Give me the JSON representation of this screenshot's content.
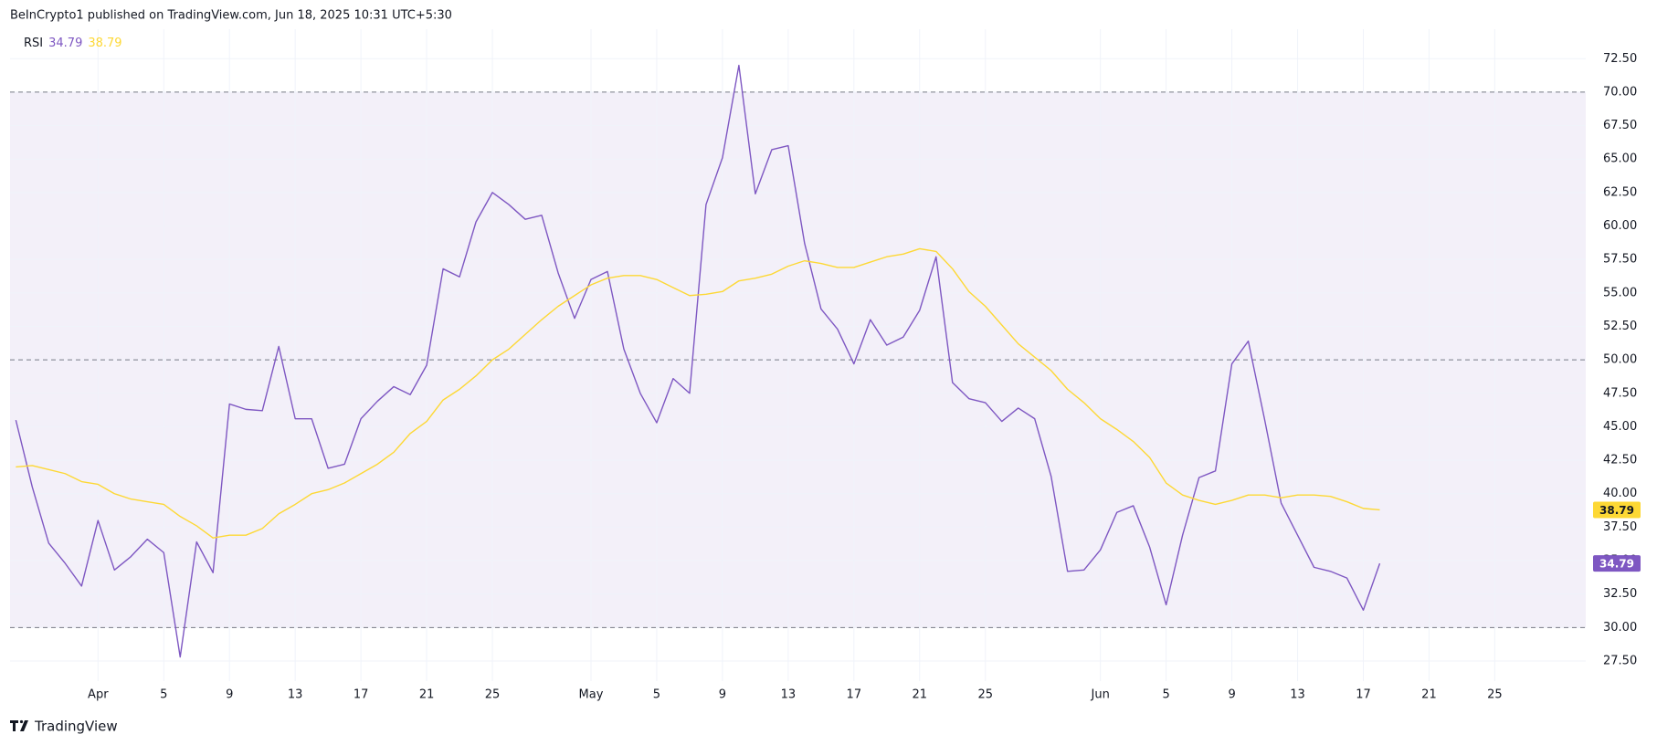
{
  "header": "BeInCrypto1 published on TradingView.com, Jun 18, 2025 10:31 UTC+5:30",
  "footer": "TradingView",
  "chart_data": {
    "type": "line",
    "categories": [
      null,
      null,
      null,
      null,
      null,
      "Apr",
      null,
      null,
      null,
      "5",
      null,
      null,
      null,
      "9",
      null,
      null,
      null,
      "13",
      null,
      null,
      null,
      "17",
      null,
      null,
      null,
      "21",
      null,
      null,
      null,
      "25",
      null,
      null,
      null,
      null,
      null,
      "May",
      null,
      null,
      null,
      "5",
      null,
      null,
      null,
      "9",
      null,
      null,
      null,
      "13",
      null,
      null,
      null,
      "17",
      null,
      null,
      null,
      "21",
      null,
      null,
      null,
      "25",
      null,
      null,
      null,
      null,
      null,
      null,
      "Jun",
      null,
      null,
      null,
      "5",
      null,
      null,
      null,
      "9",
      null,
      null,
      null,
      "13",
      null,
      null,
      null,
      "17",
      null,
      null,
      null,
      "21",
      null,
      null,
      null,
      "25",
      null,
      null,
      null,
      null,
      null
    ],
    "series": [
      {
        "name": "RSI",
        "color": "#7e57c2",
        "values": [
          45.5,
          40.5,
          36.3,
          34.8,
          33.1,
          38.0,
          34.3,
          35.3,
          36.6,
          35.6,
          27.8,
          36.4,
          34.1,
          46.7,
          46.3,
          46.2,
          51.0,
          45.6,
          45.6,
          41.9,
          42.2,
          45.6,
          46.9,
          48.0,
          47.4,
          49.6,
          56.8,
          56.2,
          60.3,
          62.5,
          61.6,
          60.5,
          60.8,
          56.5,
          53.1,
          56.0,
          56.6,
          50.8,
          47.5,
          45.3,
          48.6,
          47.5,
          61.6,
          65.1,
          72.0,
          62.4,
          65.7,
          66.0,
          58.7,
          53.8,
          52.3,
          49.7,
          53.0,
          51.1,
          51.7,
          53.7,
          57.7,
          48.3,
          47.1,
          46.8,
          45.4,
          46.4,
          45.6,
          41.3,
          34.2,
          34.3,
          35.8,
          38.6,
          39.1,
          36.0,
          31.7,
          36.9,
          41.2,
          41.7,
          49.7,
          51.4,
          45.5,
          39.3,
          36.9,
          34.5,
          34.2,
          33.7,
          31.3,
          34.79,
          null,
          null,
          null,
          null,
          null,
          null,
          null,
          null,
          null,
          null,
          null,
          null
        ]
      },
      {
        "color": "#fdd835",
        "values": [
          42.0,
          42.1,
          41.8,
          41.5,
          40.9,
          40.7,
          40.0,
          39.6,
          39.4,
          39.2,
          38.3,
          37.6,
          36.7,
          36.9,
          36.9,
          37.4,
          38.5,
          39.2,
          40.0,
          40.3,
          40.8,
          41.5,
          42.2,
          43.1,
          44.5,
          45.4,
          47.0,
          47.8,
          48.8,
          50.0,
          50.8,
          51.9,
          53.0,
          54.0,
          54.8,
          55.6,
          56.1,
          56.3,
          56.3,
          56.0,
          55.4,
          54.8,
          54.9,
          55.1,
          55.9,
          56.1,
          56.4,
          57.0,
          57.4,
          57.2,
          56.9,
          56.9,
          57.3,
          57.7,
          57.9,
          58.3,
          58.1,
          56.8,
          55.1,
          54.0,
          52.6,
          51.2,
          50.2,
          49.2,
          47.8,
          46.8,
          45.6,
          44.8,
          43.9,
          42.7,
          40.8,
          39.9,
          39.5,
          39.2,
          39.5,
          39.9,
          39.9,
          39.7,
          39.9,
          39.9,
          39.8,
          39.4,
          38.9,
          38.79,
          null,
          null,
          null,
          null,
          null,
          null,
          null,
          null,
          null,
          null,
          null,
          null
        ]
      }
    ],
    "ylim": [
      26,
      74.7
    ],
    "yticks": [
      {
        "value": 27.5,
        "label": "27.50"
      },
      {
        "value": 30,
        "label": "30.00"
      },
      {
        "value": 32.5,
        "label": "32.50"
      },
      {
        "value": 35,
        "label": "35.00"
      },
      {
        "value": 37.5,
        "label": "37.50"
      },
      {
        "value": 40,
        "label": "40.00"
      },
      {
        "value": 42.5,
        "label": "42.50"
      },
      {
        "value": 45,
        "label": "45.00"
      },
      {
        "value": 47.5,
        "label": "47.50"
      },
      {
        "value": 50,
        "label": "50.00"
      },
      {
        "value": 52.5,
        "label": "52.50"
      },
      {
        "value": 55,
        "label": "55.00"
      },
      {
        "value": 57.5,
        "label": "57.50"
      },
      {
        "value": 60,
        "label": "60.00"
      },
      {
        "value": 62.5,
        "label": "62.50"
      },
      {
        "value": 65,
        "label": "65.00"
      },
      {
        "value": 67.5,
        "label": "67.50"
      },
      {
        "value": 70,
        "label": "70.00"
      },
      {
        "value": 72.5,
        "label": "72.50"
      }
    ],
    "band": [
      30,
      70
    ],
    "hlines": [
      30,
      50,
      70
    ],
    "grid": true
  }
}
